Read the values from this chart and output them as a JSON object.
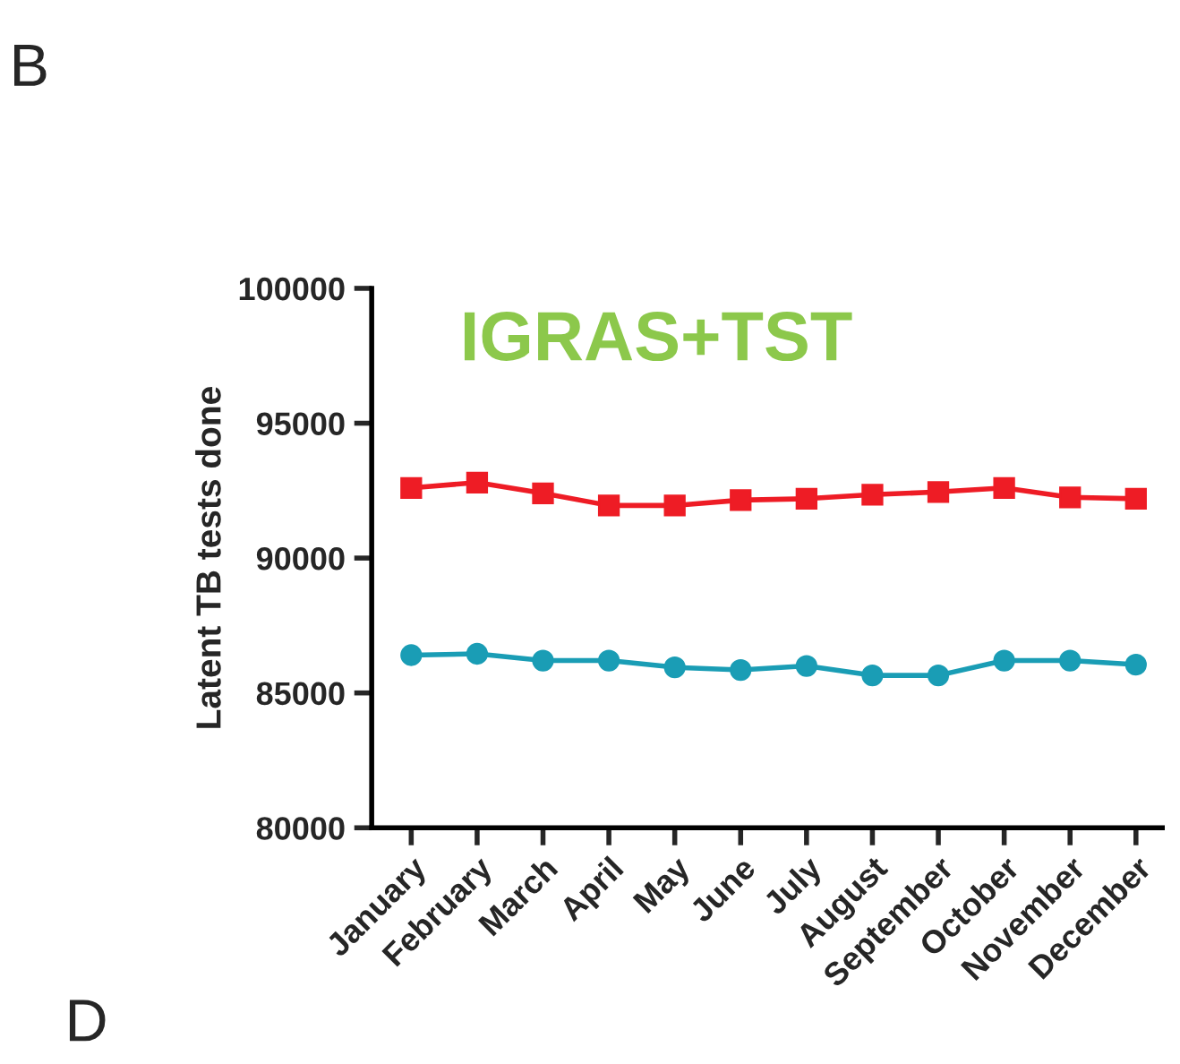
{
  "chart_data": {
    "type": "line",
    "title": "IGRAS+TST",
    "ylabel": "Latent TB tests done",
    "annotations": [
      "B",
      "D"
    ],
    "categories": [
      "January",
      "February",
      "March",
      "April",
      "May",
      "June",
      "July",
      "August",
      "September",
      "October",
      "November",
      "December"
    ],
    "series": [
      {
        "color": "#ee1c25",
        "marker": "square",
        "values": [
          92600,
          92800,
          92400,
          91950,
          91950,
          92150,
          92200,
          92350,
          92450,
          92600,
          92250,
          92200
        ]
      },
      {
        "color": "#1a9db5",
        "marker": "circle",
        "values": [
          86400,
          86450,
          86200,
          86200,
          85950,
          85850,
          86000,
          85650,
          85650,
          86200,
          86200,
          86050
        ]
      }
    ],
    "ylim": [
      80000,
      100000
    ],
    "yticks": [
      80000,
      85000,
      90000,
      95000,
      100000
    ],
    "grid": false,
    "legend": false,
    "line_style": "solid"
  }
}
